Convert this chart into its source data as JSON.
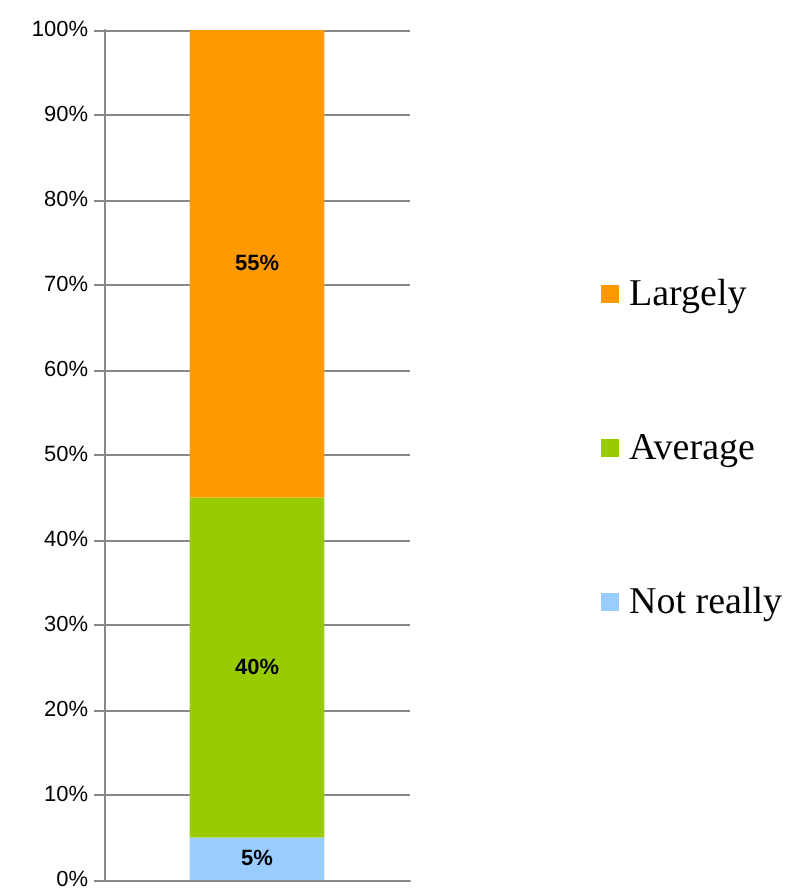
{
  "chart_data": {
    "type": "bar",
    "stacked": true,
    "categories": [
      null
    ],
    "series": [
      {
        "name": "Not really",
        "color": "#99ccff",
        "values": [
          5
        ],
        "value_labels": [
          "5%"
        ]
      },
      {
        "name": "Average",
        "color": "#99cc00",
        "values": [
          40
        ],
        "value_labels": [
          "40%"
        ]
      },
      {
        "name": "Largely",
        "color": "#ff9900",
        "values": [
          55
        ],
        "value_labels": [
          "55%"
        ]
      }
    ],
    "ylim": [
      0,
      100
    ],
    "yticks": [
      {
        "value": 0,
        "label": "0%"
      },
      {
        "value": 10,
        "label": "10%"
      },
      {
        "value": 20,
        "label": "20%"
      },
      {
        "value": 30,
        "label": "30%"
      },
      {
        "value": 40,
        "label": "40%"
      },
      {
        "value": 50,
        "label": "50%"
      },
      {
        "value": 60,
        "label": "60%"
      },
      {
        "value": 70,
        "label": "70%"
      },
      {
        "value": 80,
        "label": "80%"
      },
      {
        "value": 90,
        "label": "90%"
      },
      {
        "value": 100,
        "label": "100%"
      }
    ],
    "grid": "y",
    "legend": "right"
  }
}
